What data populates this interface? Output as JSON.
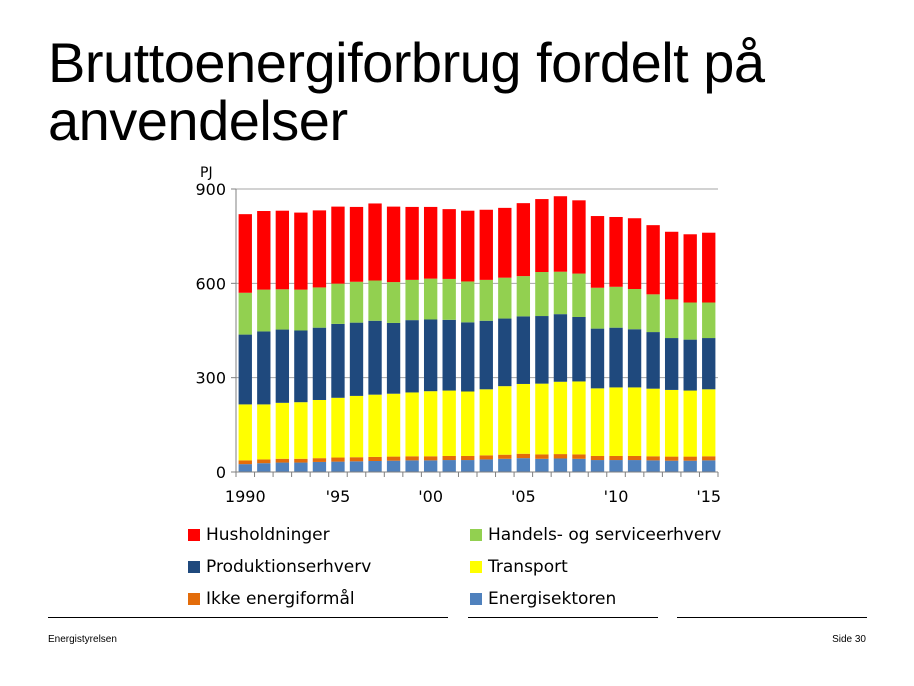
{
  "slide": {
    "title": "Bruttoenergiforbrug fordelt på anvendelser",
    "footer_left": "Energistyrelsen",
    "footer_right": "Side 30"
  },
  "chart_data": {
    "type": "bar",
    "stacked": true,
    "yunit": "PJ",
    "ylim": [
      0,
      900
    ],
    "yticks": [
      0,
      300,
      600,
      900
    ],
    "categories": [
      "1990",
      "1991",
      "1992",
      "1993",
      "1994",
      "1995",
      "1996",
      "1997",
      "1998",
      "1999",
      "2000",
      "2001",
      "2002",
      "2003",
      "2004",
      "2005",
      "2006",
      "2007",
      "2008",
      "2009",
      "2010",
      "2011",
      "2012",
      "2013",
      "2014",
      "2015"
    ],
    "xtick_labels": [
      {
        "category": "1990",
        "label": "1990"
      },
      {
        "category": "1995",
        "label": "'95"
      },
      {
        "category": "2000",
        "label": "'00"
      },
      {
        "category": "2005",
        "label": "'05"
      },
      {
        "category": "2010",
        "label": "'10"
      },
      {
        "category": "2015",
        "label": "'15"
      }
    ],
    "grid": "horizontal",
    "legend_position": "bottom",
    "series": [
      {
        "name": "Energisektoren",
        "color": "#4F81BD",
        "values": [
          25,
          28,
          30,
          30,
          32,
          33,
          34,
          35,
          36,
          37,
          37,
          38,
          38,
          40,
          42,
          44,
          42,
          43,
          42,
          38,
          38,
          38,
          37,
          36,
          36,
          37
        ]
      },
      {
        "name": "Ikke energiformål",
        "color": "#E36C0A",
        "values": [
          12,
          12,
          12,
          12,
          12,
          13,
          13,
          13,
          13,
          13,
          13,
          13,
          13,
          13,
          13,
          14,
          14,
          14,
          14,
          13,
          13,
          13,
          13,
          13,
          13,
          13
        ]
      },
      {
        "name": "Transport",
        "color": "#FFFF00",
        "values": [
          178,
          175,
          178,
          180,
          185,
          190,
          195,
          198,
          200,
          203,
          207,
          208,
          205,
          210,
          218,
          222,
          225,
          230,
          232,
          215,
          218,
          218,
          215,
          212,
          210,
          213
        ]
      },
      {
        "name": "Produktionserhverv",
        "color": "#1F497D",
        "values": [
          222,
          232,
          233,
          228,
          230,
          235,
          233,
          235,
          225,
          230,
          228,
          225,
          220,
          218,
          215,
          215,
          215,
          215,
          205,
          190,
          190,
          185,
          180,
          165,
          162,
          163
        ]
      },
      {
        "name": "Handels- og serviceerhverv",
        "color": "#92D050",
        "values": [
          133,
          133,
          128,
          130,
          128,
          128,
          130,
          128,
          130,
          128,
          130,
          130,
          130,
          130,
          130,
          128,
          140,
          135,
          138,
          130,
          130,
          128,
          120,
          123,
          118,
          113
        ]
      },
      {
        "name": "Husholdninger",
        "color": "#FF0000",
        "values": [
          250,
          250,
          250,
          245,
          245,
          245,
          238,
          245,
          240,
          232,
          228,
          222,
          225,
          223,
          222,
          232,
          232,
          240,
          233,
          228,
          222,
          225,
          220,
          215,
          217,
          222
        ]
      }
    ],
    "legend": [
      "Husholdninger",
      "Handels- og serviceerhverv",
      "Produktionserhverv",
      "Transport",
      "Ikke energiformål",
      "Energisektoren"
    ]
  }
}
